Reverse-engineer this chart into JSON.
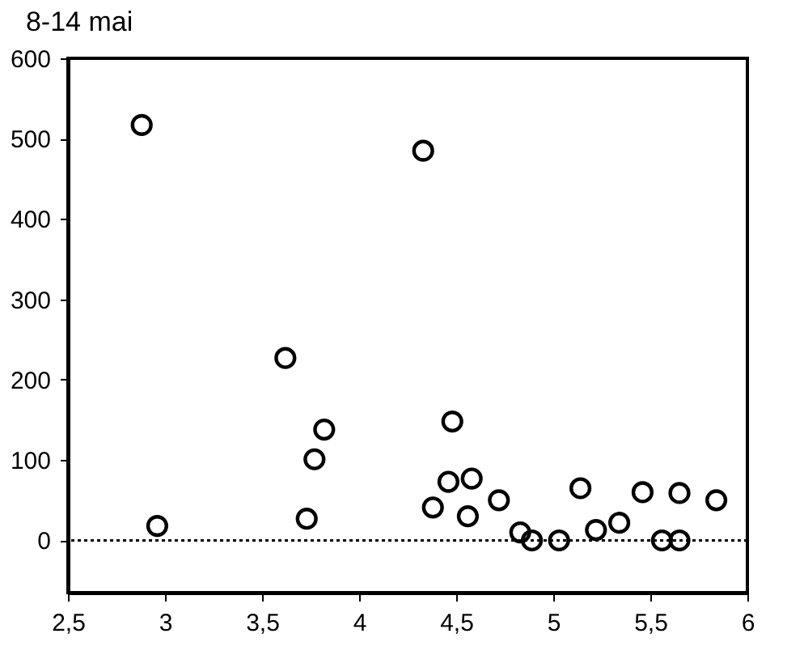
{
  "chart_data": {
    "type": "scatter",
    "title": "8-14 mai",
    "x": [
      2.88,
      2.96,
      3.62,
      3.73,
      3.77,
      3.82,
      4.33,
      4.38,
      4.46,
      4.48,
      4.56,
      4.58,
      4.72,
      4.83,
      4.89,
      5.03,
      5.14,
      5.22,
      5.34,
      5.46,
      5.56,
      5.65,
      5.65,
      5.84
    ],
    "values": [
      517,
      18,
      227,
      27,
      101,
      138,
      485,
      41,
      73,
      148,
      30,
      77,
      50,
      10,
      0,
      0,
      65,
      13,
      22,
      60,
      0,
      59,
      0,
      50
    ],
    "color": "#000000",
    "marker": "circle",
    "xlim": [
      2.5,
      6
    ],
    "xticks": [
      {
        "value": 2.5,
        "label": "2,5"
      },
      3,
      {
        "value": 3.5,
        "label": "3,5"
      },
      4,
      {
        "value": 4.5,
        "label": "4,5"
      },
      5,
      {
        "value": 5.5,
        "label": "5,5"
      },
      6
    ],
    "ylim": [
      -65,
      600
    ],
    "yticks": [
      0,
      100,
      200,
      300,
      400,
      500,
      600
    ],
    "ref_lines": [
      {
        "axis": "y",
        "value": 0,
        "label": null,
        "line_style": "dotted",
        "color": "#000000"
      }
    ]
  }
}
